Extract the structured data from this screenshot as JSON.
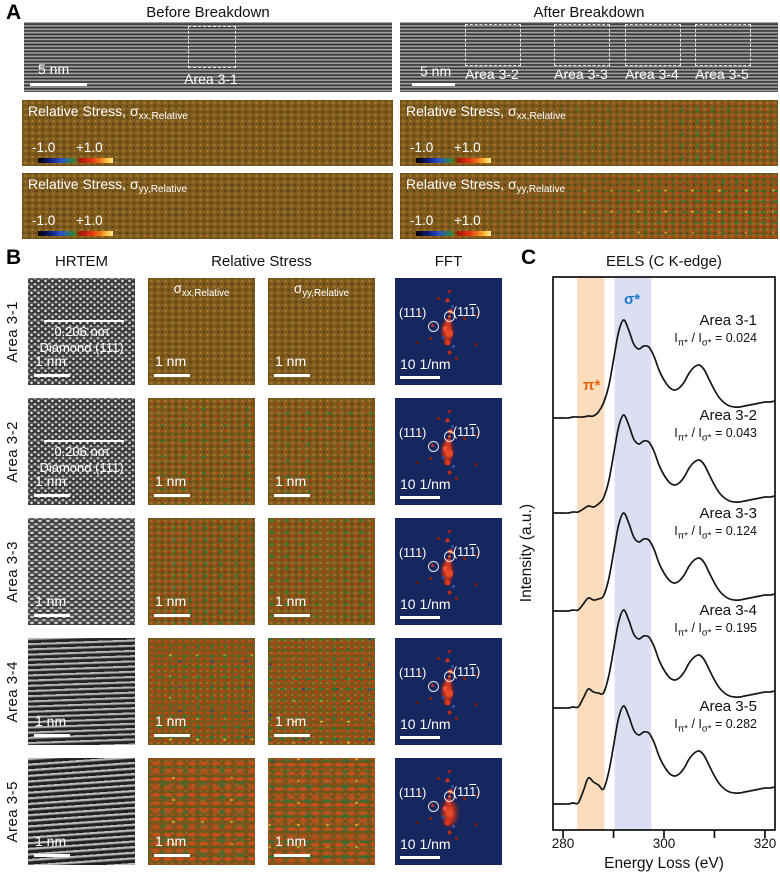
{
  "colors": {
    "stress_base": "#7d5a1d",
    "fft_background": "#16265e",
    "pi_band": "#fbdcbc",
    "sigma_band": "#dcdff2",
    "pi_label": "#e8650f",
    "sigma_label": "#1f78c8"
  },
  "panelA": {
    "label": "A",
    "before_title": "Before Breakdown",
    "after_title": "After Breakdown",
    "scale_bar": "5 nm",
    "area_before": "Area 3-1",
    "areas_after": [
      "Area 3-2",
      "Area 3-3",
      "Area 3-4",
      "Area 3-5"
    ],
    "stress_title_prefix": "Relative Stress, ",
    "sigma": "σ",
    "sigma_xx_sub": "xx,Relative",
    "sigma_yy_sub": "yy,Relative",
    "cbar_min": "-1.0",
    "cbar_max": "+1.0"
  },
  "panelB": {
    "label": "B",
    "headers": {
      "hrtem": "HRTEM",
      "stress": "Relative Stress",
      "fft": "FFT"
    },
    "scale_bar_nm": "1 nm",
    "scale_bar_fft": "10 1/nm",
    "fft_spot1": "(111)",
    "fft_spot2_pre": "(11",
    "fft_spot2_bar": "1",
    "fft_spot2_post": ")",
    "lattice_spacing": "0.206 nm",
    "lattice_plane": "Diamond (111)",
    "sigma": "σ",
    "sigma_xx_sub": "xx,Relative",
    "sigma_yy_sub": "yy,Relative",
    "rows": [
      {
        "label": "Area 3-1"
      },
      {
        "label": "Area 3-2"
      },
      {
        "label": "Area 3-3"
      },
      {
        "label": "Area 3-4"
      },
      {
        "label": "Area 3-5"
      }
    ]
  },
  "panelC": {
    "label": "C",
    "ratio_parts": {
      "i1": "I",
      "pi": "π*",
      "mid": " / I",
      "sigma": "σ*",
      "eq": " = "
    }
  },
  "chart_data": {
    "type": "line",
    "title": "EELS (C K-edge)",
    "xlabel": "Energy Loss (eV)",
    "ylabel": "Intensity (a.u.)",
    "xlim": [
      278,
      322
    ],
    "xticks": [
      280,
      290,
      300,
      310,
      320
    ],
    "xtick_labels": [
      "280",
      "",
      "300",
      "",
      "320"
    ],
    "grid": false,
    "legend": "none",
    "y_units": "stacked spectra, normalized arbitrary units",
    "bands": [
      {
        "name": "pi-star",
        "label": "π*",
        "x0": 282.8,
        "x1": 288.2,
        "color": "#fbdcbc",
        "label_color": "#e8650f"
      },
      {
        "name": "sigma-star",
        "label": "σ*",
        "x0": 290.2,
        "x1": 297.5,
        "color": "#dcdff2",
        "label_color": "#1f78c8"
      }
    ],
    "x_eV": [
      278,
      279,
      280,
      281,
      282,
      283,
      284,
      285,
      286,
      287,
      288,
      289,
      290,
      291,
      292,
      293,
      294,
      295,
      296,
      297,
      298,
      299,
      300,
      301,
      302,
      303,
      304,
      305,
      306,
      307,
      308,
      309,
      310,
      311,
      312,
      313,
      314,
      315,
      316,
      317,
      318,
      319,
      320,
      321,
      322
    ],
    "series": [
      {
        "name": "Area 3-1",
        "ratio": "0.024",
        "y": [
          0.02,
          0.02,
          0.02,
          0.02,
          0.03,
          0.03,
          0.03,
          0.04,
          0.04,
          0.08,
          0.17,
          0.33,
          0.6,
          0.88,
          1.0,
          0.9,
          0.76,
          0.71,
          0.74,
          0.73,
          0.64,
          0.5,
          0.4,
          0.33,
          0.3,
          0.32,
          0.38,
          0.47,
          0.53,
          0.55,
          0.5,
          0.4,
          0.3,
          0.22,
          0.17,
          0.14,
          0.13,
          0.13,
          0.14,
          0.15,
          0.16,
          0.17,
          0.18,
          0.18,
          0.19
        ]
      },
      {
        "name": "Area 3-2",
        "ratio": "0.043",
        "y": [
          0.02,
          0.02,
          0.02,
          0.02,
          0.03,
          0.03,
          0.06,
          0.09,
          0.08,
          0.11,
          0.17,
          0.33,
          0.6,
          0.88,
          1.0,
          0.9,
          0.76,
          0.71,
          0.74,
          0.73,
          0.64,
          0.5,
          0.4,
          0.33,
          0.3,
          0.32,
          0.38,
          0.47,
          0.53,
          0.55,
          0.5,
          0.4,
          0.3,
          0.22,
          0.17,
          0.14,
          0.13,
          0.13,
          0.14,
          0.15,
          0.16,
          0.17,
          0.18,
          0.18,
          0.19
        ]
      },
      {
        "name": "Area 3-3",
        "ratio": "0.124",
        "y": [
          0.02,
          0.02,
          0.02,
          0.02,
          0.03,
          0.03,
          0.09,
          0.15,
          0.13,
          0.14,
          0.17,
          0.33,
          0.6,
          0.88,
          1.0,
          0.9,
          0.76,
          0.71,
          0.74,
          0.73,
          0.64,
          0.5,
          0.4,
          0.33,
          0.3,
          0.32,
          0.38,
          0.47,
          0.53,
          0.55,
          0.5,
          0.4,
          0.3,
          0.22,
          0.17,
          0.14,
          0.13,
          0.13,
          0.14,
          0.15,
          0.16,
          0.17,
          0.18,
          0.18,
          0.19
        ]
      },
      {
        "name": "Area 3-4",
        "ratio": "0.195",
        "y": [
          0.02,
          0.02,
          0.02,
          0.02,
          0.03,
          0.03,
          0.12,
          0.21,
          0.18,
          0.17,
          0.17,
          0.33,
          0.6,
          0.88,
          1.0,
          0.9,
          0.76,
          0.71,
          0.74,
          0.73,
          0.64,
          0.5,
          0.4,
          0.33,
          0.3,
          0.32,
          0.38,
          0.47,
          0.53,
          0.55,
          0.5,
          0.4,
          0.3,
          0.22,
          0.17,
          0.14,
          0.13,
          0.13,
          0.14,
          0.15,
          0.16,
          0.17,
          0.18,
          0.18,
          0.19
        ]
      },
      {
        "name": "Area 3-5",
        "ratio": "0.282",
        "y": [
          0.02,
          0.02,
          0.02,
          0.02,
          0.03,
          0.03,
          0.15,
          0.28,
          0.24,
          0.21,
          0.17,
          0.33,
          0.6,
          0.88,
          1.0,
          0.9,
          0.76,
          0.71,
          0.74,
          0.73,
          0.64,
          0.5,
          0.4,
          0.33,
          0.3,
          0.32,
          0.38,
          0.47,
          0.53,
          0.55,
          0.5,
          0.4,
          0.3,
          0.22,
          0.17,
          0.14,
          0.13,
          0.13,
          0.14,
          0.15,
          0.16,
          0.17,
          0.18,
          0.18,
          0.19
        ]
      }
    ]
  }
}
